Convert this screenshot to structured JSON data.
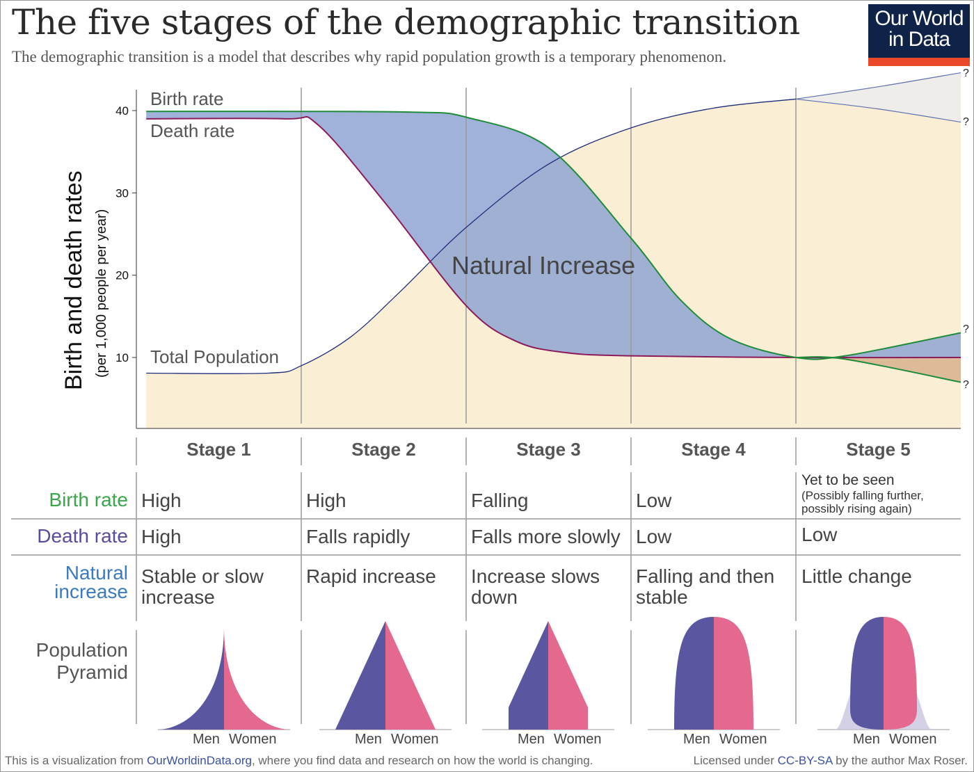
{
  "title": "The five stages of the demographic transition",
  "subtitle": "The demographic transition is a model that describes why rapid population growth is a temporary phenomenon.",
  "logo": {
    "line1": "Our World",
    "line2": "in Data"
  },
  "colors": {
    "birth": "#1e8c3a",
    "death": "#8b1a5a",
    "population": "#1f2d7a",
    "population_fill": "#faeed5",
    "natural_increase_fill": "#8fa5d2",
    "uncertain_fill": "#eeede9",
    "decrease_fill": "#ddbb99",
    "men": "#5a56a0",
    "women": "#e5688f",
    "logo_bg": "#0f2348",
    "logo_bar": "#e9482a"
  },
  "chart_data": {
    "type": "line",
    "ylabel": "Birth and death rates",
    "ylabel_sub": "(per 1,000 people per year)",
    "yticks": [
      "40",
      "30",
      "20",
      "10"
    ],
    "ytick_values": [
      40,
      30,
      20,
      10
    ],
    "ylim": [
      1.5,
      43
    ],
    "xlim": [
      0,
      5
    ],
    "stage_boundaries": [
      1,
      2,
      3,
      4
    ],
    "annotation": "Natural Increase",
    "series": [
      {
        "name": "Birth rate",
        "points": [
          [
            0.06,
            39.9
          ],
          [
            1,
            39.9
          ],
          [
            1.7,
            39.8
          ],
          [
            2,
            39.2
          ],
          [
            2.5,
            35.5
          ],
          [
            3,
            24.5
          ],
          [
            3.3,
            17
          ],
          [
            3.6,
            12.3
          ],
          [
            4,
            10
          ],
          [
            4.3,
            10.2
          ],
          [
            5,
            13
          ]
        ],
        "alt_end": [
          [
            4,
            10
          ],
          [
            4.3,
            9.8
          ],
          [
            5,
            7
          ]
        ],
        "end_label": "?"
      },
      {
        "name": "Death rate",
        "points": [
          [
            0.06,
            39
          ],
          [
            0.9,
            39
          ],
          [
            1.1,
            38.3
          ],
          [
            1.5,
            29
          ],
          [
            2,
            16.3
          ],
          [
            2.3,
            12
          ],
          [
            2.6,
            10.6
          ],
          [
            3,
            10.2
          ],
          [
            4,
            10
          ],
          [
            5,
            10
          ]
        ]
      },
      {
        "name": "Total Population",
        "points": [
          [
            0.06,
            8.1
          ],
          [
            0.8,
            8.1
          ],
          [
            1,
            9
          ],
          [
            1.3,
            12.5
          ],
          [
            1.6,
            18
          ],
          [
            2,
            25.8
          ],
          [
            2.5,
            33.5
          ],
          [
            3,
            37.9
          ],
          [
            3.5,
            40.3
          ],
          [
            4,
            41.4
          ]
        ],
        "fork_high": [
          [
            4,
            41.4
          ],
          [
            4.5,
            42.9
          ],
          [
            5,
            44.6
          ]
        ],
        "fork_low": [
          [
            4,
            41.4
          ],
          [
            4.5,
            40.2
          ],
          [
            5,
            38.6
          ]
        ],
        "end_label": "?"
      }
    ]
  },
  "table": {
    "stages": [
      "Stage 1",
      "Stage 2",
      "Stage 3",
      "Stage 4",
      "Stage 5"
    ],
    "rows": [
      {
        "label": "Birth rate",
        "values": [
          "High",
          "High",
          "Falling",
          "Low",
          "Yet to be seen"
        ],
        "note": "(Possibly falling further, possibly rising again)"
      },
      {
        "label": "Death rate",
        "values": [
          "High",
          "Falls rapidly",
          "Falls more slowly",
          "Low",
          "Low"
        ]
      },
      {
        "label_line1": "Natural",
        "label_line2": "increase",
        "values": [
          [
            "Stable or slow",
            "increase"
          ],
          [
            "Rapid increase",
            ""
          ],
          [
            "Increase slows",
            "down"
          ],
          [
            "Falling and then",
            "stable"
          ],
          [
            "Little change",
            ""
          ]
        ]
      },
      {
        "label_line1": "Population",
        "label_line2": "Pyramid"
      }
    ],
    "men": "Men",
    "women": "Women"
  },
  "footer": {
    "left_pre": "This is a visualization from ",
    "left_link": "OurWorldinData.org",
    "left_post": ", where you find data and research on how the world is changing.",
    "right_pre": "Licensed under ",
    "right_link": "CC-BY-SA",
    "right_post": " by the author Max Roser."
  }
}
